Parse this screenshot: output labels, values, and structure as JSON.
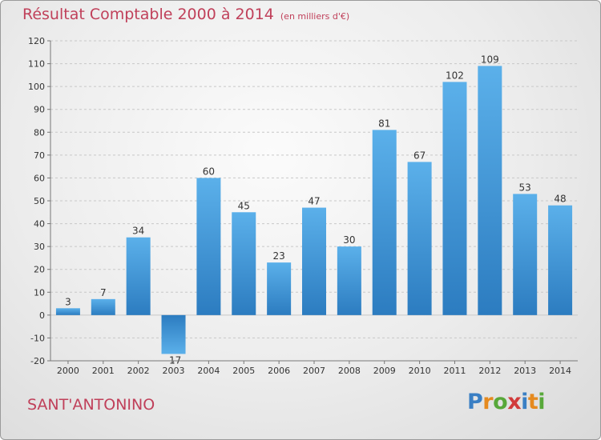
{
  "title": "Résultat Comptable 2000 à 2014",
  "subtitle": "(en milliers d'€)",
  "commune": "SANT'ANTONINO",
  "logo": {
    "letters": [
      "P",
      "r",
      "o",
      "x",
      "i",
      "t",
      "i"
    ],
    "colors": [
      "#3a7fc4",
      "#e58a1f",
      "#58a83a",
      "#d13a3a",
      "#3a7fc4",
      "#e58a1f",
      "#58a83a"
    ]
  },
  "colors": {
    "bar": "#4a9fde",
    "bar_dark": "#2f7fc4",
    "title": "#c0405a",
    "grid": "#c8c8c8"
  },
  "chart_data": {
    "type": "bar",
    "categories": [
      "2000",
      "2001",
      "2002",
      "2003",
      "2004",
      "2005",
      "2006",
      "2007",
      "2008",
      "2009",
      "2010",
      "2011",
      "2012",
      "2013",
      "2014"
    ],
    "values": [
      3,
      7,
      34,
      -17,
      60,
      45,
      23,
      47,
      30,
      81,
      67,
      102,
      109,
      53,
      48
    ],
    "data_labels": [
      "3",
      "7",
      "34",
      "-17",
      "60",
      "45",
      "23",
      "47",
      "30",
      "81",
      "67",
      "102",
      "109",
      "53",
      "48"
    ],
    "yticks": [
      -20,
      -10,
      0,
      10,
      20,
      30,
      40,
      50,
      60,
      70,
      80,
      90,
      100,
      110,
      120
    ],
    "ylim": [
      -20,
      120
    ],
    "grid": true
  }
}
